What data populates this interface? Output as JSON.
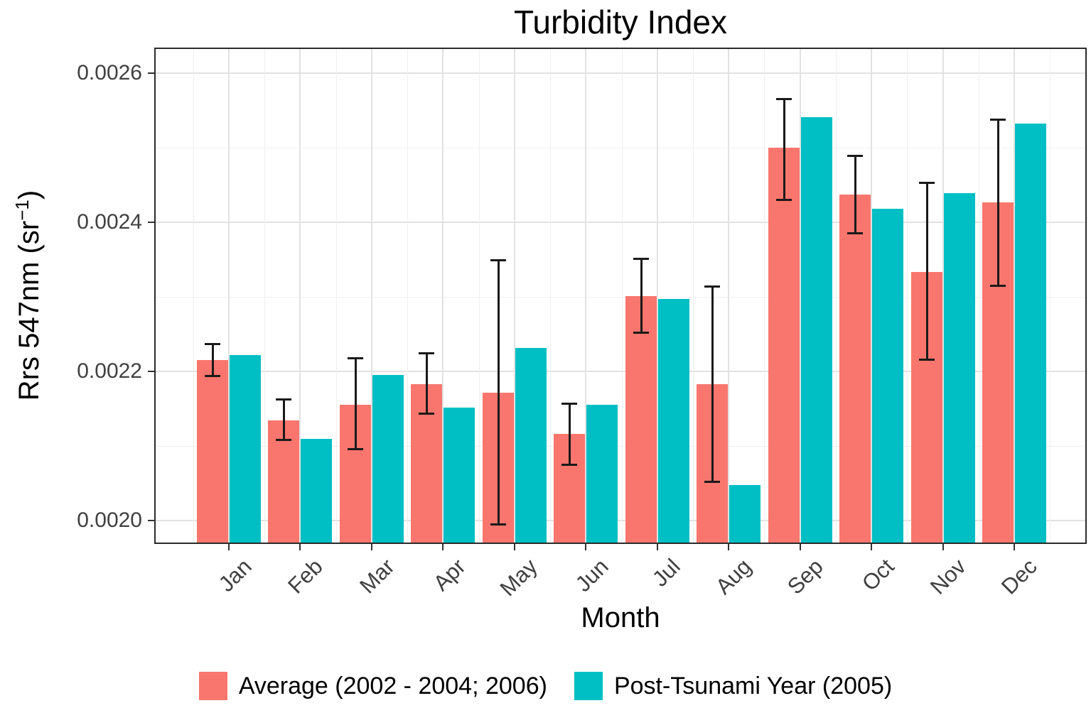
{
  "title": "Turbidity Index",
  "axes": {
    "x_label": "Month",
    "y_label_prefix": "Rrs 547nm (sr",
    "y_label_sup": "−1",
    "y_label_suffix": ")",
    "y_tick_labels": [
      "0.0020",
      "0.0022",
      "0.0024",
      "0.0026"
    ]
  },
  "legend": {
    "items": [
      {
        "series": "average",
        "label": "Average (2002 - 2004; 2006)",
        "color": "#F8766D"
      },
      {
        "series": "post_tsunami",
        "label": "Post-Tsunami Year (2005)",
        "color": "#00BFC4"
      }
    ]
  },
  "chart_data": {
    "type": "bar",
    "title": "Turbidity Index",
    "xlabel": "Month",
    "ylabel": "Rrs 547nm (sr−1)",
    "categories": [
      "Jan",
      "Feb",
      "Mar",
      "Apr",
      "May",
      "Jun",
      "Jul",
      "Aug",
      "Sep",
      "Oct",
      "Nov",
      "Dec"
    ],
    "series": [
      {
        "name": "Average (2002 - 2004; 2006)",
        "color": "#F8766D",
        "values": [
          0.002215,
          0.002134,
          0.002155,
          0.002183,
          0.002171,
          0.002116,
          0.002301,
          0.002183,
          0.0025,
          0.002437,
          0.002333,
          0.002427
        ],
        "error_high": [
          0.002237,
          0.002163,
          0.002218,
          0.002225,
          0.00235,
          0.002157,
          0.002351,
          0.002314,
          0.002566,
          0.00249,
          0.002453,
          0.002538
        ],
        "error_low": [
          0.002193,
          0.002108,
          0.002095,
          0.002143,
          0.001994,
          0.002074,
          0.002251,
          0.002051,
          0.00243,
          0.002385,
          0.002215,
          0.002314
        ]
      },
      {
        "name": "Post-Tsunami Year (2005)",
        "color": "#00BFC4",
        "values": [
          0.002222,
          0.00211,
          0.002195,
          0.002151,
          0.002231,
          0.002155,
          0.002297,
          0.002048,
          0.002541,
          0.002418,
          0.002439,
          0.002532
        ]
      }
    ],
    "ylim": [
      0.00197,
      0.002635
    ],
    "yticks_major": [
      0.002,
      0.0022,
      0.0024,
      0.0026
    ],
    "yticks_minor": [
      0.0021,
      0.0023,
      0.0025
    ],
    "grid": true,
    "legend_position": "bottom",
    "errorbars": "average series only"
  }
}
